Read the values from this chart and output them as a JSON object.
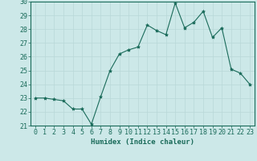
{
  "x": [
    0,
    1,
    2,
    3,
    4,
    5,
    6,
    7,
    8,
    9,
    10,
    11,
    12,
    13,
    14,
    15,
    16,
    17,
    18,
    19,
    20,
    21,
    22,
    23
  ],
  "y": [
    23,
    23,
    22.9,
    22.8,
    22.2,
    22.2,
    21.1,
    23.1,
    25.0,
    26.2,
    26.5,
    26.7,
    28.3,
    27.9,
    27.6,
    29.9,
    28.1,
    28.5,
    29.3,
    27.4,
    28.1,
    25.1,
    24.8,
    24.0
  ],
  "line_color": "#1a6b5a",
  "marker": "*",
  "marker_size": 3,
  "bg_color": "#cce8e8",
  "grid_color": "#b8d8d8",
  "xlabel": "Humidex (Indice chaleur)",
  "ylim": [
    21,
    30
  ],
  "xlim_min": -0.5,
  "xlim_max": 23.5,
  "yticks": [
    21,
    22,
    23,
    24,
    25,
    26,
    27,
    28,
    29,
    30
  ],
  "xticks": [
    0,
    1,
    2,
    3,
    4,
    5,
    6,
    7,
    8,
    9,
    10,
    11,
    12,
    13,
    14,
    15,
    16,
    17,
    18,
    19,
    20,
    21,
    22,
    23
  ],
  "tick_color": "#1a6b5a",
  "label_fontsize": 6.5,
  "tick_fontsize": 6.0,
  "linewidth": 0.8
}
